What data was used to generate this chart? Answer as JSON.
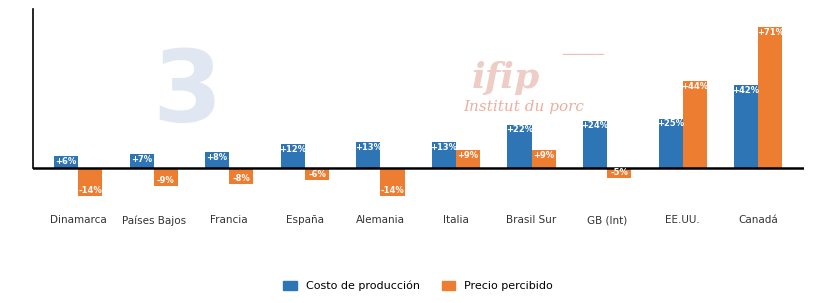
{
  "categories": [
    "Dinamarca",
    "Países Bajos",
    "Francia",
    "España",
    "Alemania",
    "Italia",
    "Brasil Sur",
    "GB (Int)",
    "EE.UU.",
    "Canadá"
  ],
  "costo_produccion": [
    6,
    7,
    8,
    12,
    13,
    13,
    22,
    24,
    25,
    42
  ],
  "precio_percibido": [
    -14,
    -9,
    -8,
    -6,
    -14,
    9,
    9,
    -5,
    44,
    71
  ],
  "costo_labels": [
    "+6%",
    "+7%",
    "+8%",
    "+12%",
    "+13%",
    "+13%",
    "+22%",
    "+24%",
    "+25%",
    "+42%"
  ],
  "precio_labels": [
    "-14%",
    "-9%",
    "-8%",
    "-6%",
    "-14%",
    "+9%",
    "+9%",
    "-5%",
    "+44%",
    "+71%"
  ],
  "color_costo": "#2E75B6",
  "color_precio": "#ED7D31",
  "legend_costo": "Costo de producción",
  "legend_precio": "Precio percibido",
  "bar_width": 0.32,
  "ylim_min": -22,
  "ylim_max": 80,
  "watermark_text1": "ifip",
  "watermark_text2": "Institut du porc",
  "bg_color": "#ffffff",
  "spine_color": "#000000",
  "tick_color": "#333333",
  "label_fontsize": 6.0,
  "cat_fontsize": 7.5
}
